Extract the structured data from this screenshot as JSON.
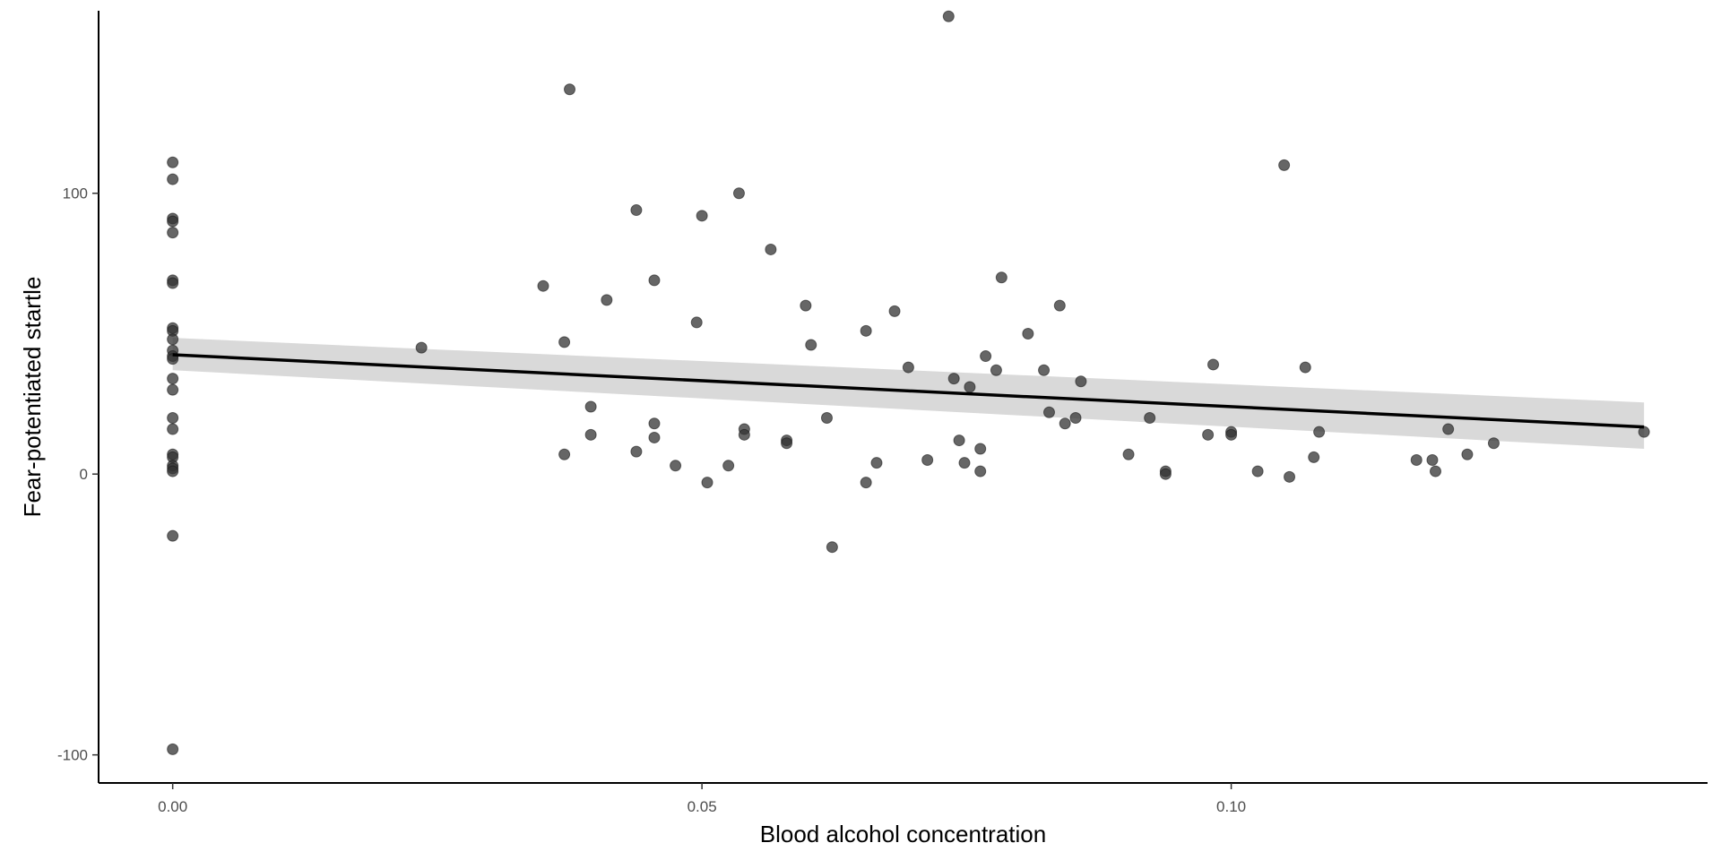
{
  "chart_data": {
    "type": "scatter",
    "title": "",
    "xlabel": "Blood alcohol concentration",
    "ylabel": "Fear-potentiated startle",
    "xlim": [
      -0.007,
      0.145
    ],
    "ylim": [
      -110,
      165
    ],
    "x_ticks": [
      0.0,
      0.05,
      0.1
    ],
    "x_tick_labels": [
      "0.00",
      "0.05",
      "0.10"
    ],
    "y_ticks": [
      -100,
      0,
      100
    ],
    "y_tick_labels": [
      "-100",
      "0",
      "100"
    ],
    "grid": false,
    "point_color": "#333333",
    "point_opacity": 0.75,
    "fit": {
      "method": "linear",
      "x_range": [
        0.0,
        0.139
      ],
      "intercept": 42.5,
      "slope": -185,
      "ci_low": [
        37,
        9
      ],
      "ci_high": [
        48.5,
        25.5
      ],
      "line_color": "#000000",
      "ribbon_color": "#d9d9d9"
    },
    "points": [
      [
        0,
        111
      ],
      [
        0,
        105
      ],
      [
        0,
        91
      ],
      [
        0,
        90
      ],
      [
        0,
        86
      ],
      [
        0,
        69
      ],
      [
        0,
        68
      ],
      [
        0,
        52
      ],
      [
        0,
        51
      ],
      [
        0,
        48
      ],
      [
        0,
        44
      ],
      [
        0,
        42
      ],
      [
        0,
        41
      ],
      [
        0,
        34
      ],
      [
        0,
        30
      ],
      [
        0,
        20
      ],
      [
        0,
        16
      ],
      [
        0,
        7
      ],
      [
        0,
        6
      ],
      [
        0,
        3
      ],
      [
        0,
        2
      ],
      [
        0,
        1
      ],
      [
        0,
        -22
      ],
      [
        0,
        -98
      ],
      [
        0.0235,
        45
      ],
      [
        0.035,
        67
      ],
      [
        0.037,
        47
      ],
      [
        0.037,
        7
      ],
      [
        0.0375,
        137
      ],
      [
        0.0395,
        24
      ],
      [
        0.0395,
        14
      ],
      [
        0.041,
        62
      ],
      [
        0.0438,
        94
      ],
      [
        0.0438,
        8
      ],
      [
        0.0455,
        69
      ],
      [
        0.0455,
        18
      ],
      [
        0.0455,
        13
      ],
      [
        0.0475,
        3
      ],
      [
        0.0495,
        54
      ],
      [
        0.05,
        92
      ],
      [
        0.0505,
        -3
      ],
      [
        0.0525,
        3
      ],
      [
        0.0535,
        100
      ],
      [
        0.054,
        16
      ],
      [
        0.054,
        14
      ],
      [
        0.0565,
        80
      ],
      [
        0.058,
        12
      ],
      [
        0.058,
        11
      ],
      [
        0.0598,
        60
      ],
      [
        0.0603,
        46
      ],
      [
        0.0618,
        20
      ],
      [
        0.0623,
        -26
      ],
      [
        0.0655,
        51
      ],
      [
        0.0655,
        -3
      ],
      [
        0.0665,
        4
      ],
      [
        0.0682,
        58
      ],
      [
        0.0695,
        38
      ],
      [
        0.0713,
        5
      ],
      [
        0.0733,
        163
      ],
      [
        0.0738,
        34
      ],
      [
        0.0743,
        12
      ],
      [
        0.0748,
        4
      ],
      [
        0.0753,
        31
      ],
      [
        0.0763,
        9
      ],
      [
        0.0763,
        1
      ],
      [
        0.0768,
        42
      ],
      [
        0.0778,
        37
      ],
      [
        0.0783,
        70
      ],
      [
        0.0808,
        50
      ],
      [
        0.0823,
        37
      ],
      [
        0.0828,
        22
      ],
      [
        0.0838,
        60
      ],
      [
        0.0843,
        18
      ],
      [
        0.0853,
        20
      ],
      [
        0.0858,
        33
      ],
      [
        0.0903,
        7
      ],
      [
        0.0923,
        20
      ],
      [
        0.0938,
        1
      ],
      [
        0.0938,
        0
      ],
      [
        0.0978,
        14
      ],
      [
        0.0983,
        39
      ],
      [
        0.1,
        15
      ],
      [
        0.1,
        14
      ],
      [
        0.1025,
        1
      ],
      [
        0.105,
        110
      ],
      [
        0.1055,
        -1
      ],
      [
        0.107,
        38
      ],
      [
        0.1078,
        6
      ],
      [
        0.1083,
        15
      ],
      [
        0.1175,
        5
      ],
      [
        0.119,
        5
      ],
      [
        0.1193,
        1
      ],
      [
        0.1205,
        16
      ],
      [
        0.1223,
        7
      ],
      [
        0.1248,
        11
      ],
      [
        0.139,
        15
      ]
    ]
  }
}
